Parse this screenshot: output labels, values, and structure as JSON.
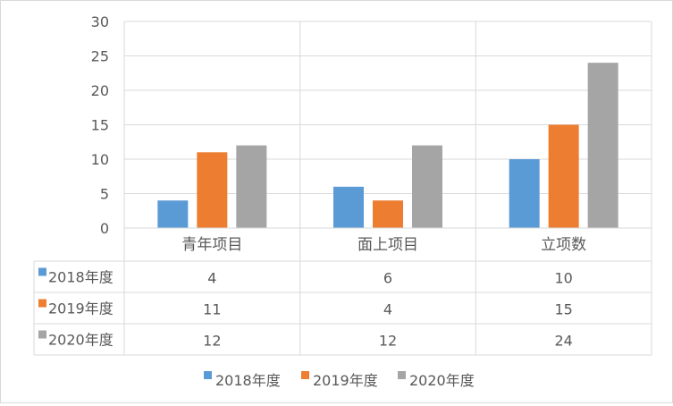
{
  "chart_data": {
    "type": "bar",
    "categories": [
      "青年项目",
      "面上项目",
      "立项数"
    ],
    "series": [
      {
        "name": "2018年度",
        "values": [
          4,
          6,
          10
        ],
        "color": "#5b9bd5"
      },
      {
        "name": "2019年度",
        "values": [
          11,
          4,
          15
        ],
        "color": "#ed7d31"
      },
      {
        "name": "2020年度",
        "values": [
          12,
          12,
          24
        ],
        "color": "#a5a5a5"
      }
    ],
    "ylim": [
      0,
      30
    ],
    "yticks": [
      0,
      5,
      10,
      15,
      20,
      25,
      30
    ],
    "grid": true,
    "data_table": true,
    "legend_position": "bottom",
    "axis_color": "#d9d9d9",
    "text_color": "#595959"
  }
}
